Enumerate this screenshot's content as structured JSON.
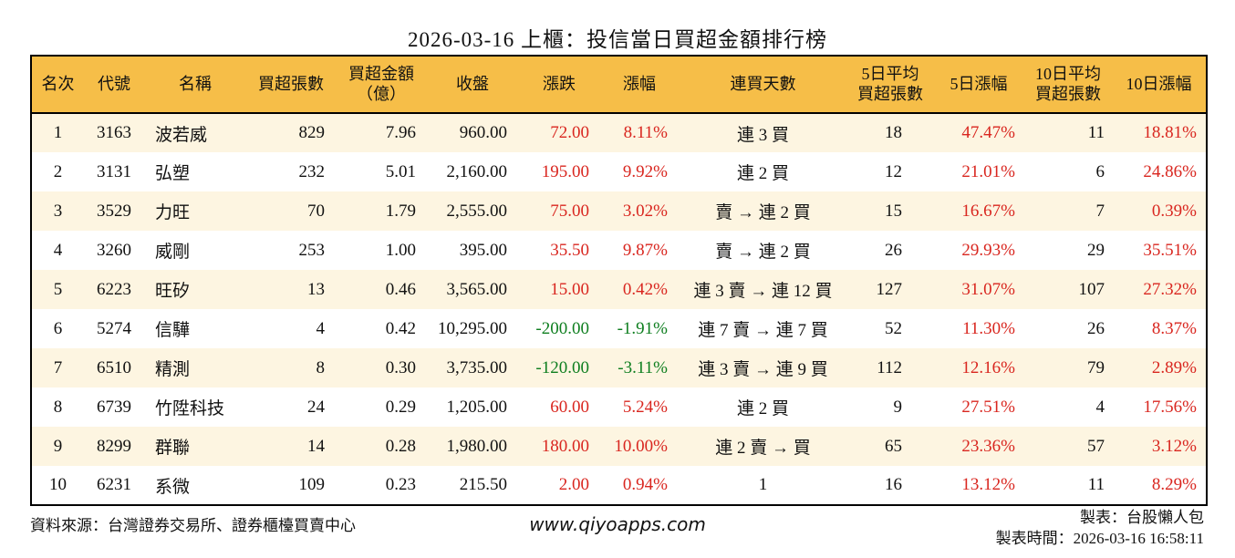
{
  "chart_data": {
    "type": "table",
    "title": "2026-03-16 上櫃：投信當日買超金額排行榜",
    "columns": [
      {
        "key": "rank",
        "label": "名次",
        "signed": false
      },
      {
        "key": "code",
        "label": "代號",
        "signed": false
      },
      {
        "key": "name",
        "label": "名稱",
        "signed": false
      },
      {
        "key": "lots",
        "label": "買超張數",
        "signed": false
      },
      {
        "key": "amount",
        "label": "買超金額\n（億）",
        "signed": false
      },
      {
        "key": "close",
        "label": "收盤",
        "signed": false
      },
      {
        "key": "change",
        "label": "漲跌",
        "signed": true
      },
      {
        "key": "change_pct",
        "label": "漲幅",
        "signed": true
      },
      {
        "key": "streak",
        "label": "連買天數",
        "signed": false
      },
      {
        "key": "avg5",
        "label": "5日平均\n買超張數",
        "signed": false
      },
      {
        "key": "pct5",
        "label": "5日漲幅",
        "signed": true
      },
      {
        "key": "avg10",
        "label": "10日平均\n買超張數",
        "signed": false
      },
      {
        "key": "pct10",
        "label": "10日漲幅",
        "signed": true
      }
    ],
    "rows": [
      {
        "rank": "1",
        "code": "3163",
        "name": "波若威",
        "lots": "829",
        "amount": "7.96",
        "close": "960.00",
        "change": "72.00",
        "change_pct": "8.11%",
        "streak": "連 3 買",
        "avg5": "18",
        "pct5": "47.47%",
        "avg10": "11",
        "pct10": "18.81%"
      },
      {
        "rank": "2",
        "code": "3131",
        "name": "弘塑",
        "lots": "232",
        "amount": "5.01",
        "close": "2,160.00",
        "change": "195.00",
        "change_pct": "9.92%",
        "streak": "連 2 買",
        "avg5": "12",
        "pct5": "21.01%",
        "avg10": "6",
        "pct10": "24.86%"
      },
      {
        "rank": "3",
        "code": "3529",
        "name": "力旺",
        "lots": "70",
        "amount": "1.79",
        "close": "2,555.00",
        "change": "75.00",
        "change_pct": "3.02%",
        "streak": "賣 → 連 2 買",
        "avg5": "15",
        "pct5": "16.67%",
        "avg10": "7",
        "pct10": "0.39%"
      },
      {
        "rank": "4",
        "code": "3260",
        "name": "威剛",
        "lots": "253",
        "amount": "1.00",
        "close": "395.00",
        "change": "35.50",
        "change_pct": "9.87%",
        "streak": "賣 → 連 2 買",
        "avg5": "26",
        "pct5": "29.93%",
        "avg10": "29",
        "pct10": "35.51%"
      },
      {
        "rank": "5",
        "code": "6223",
        "name": "旺矽",
        "lots": "13",
        "amount": "0.46",
        "close": "3,565.00",
        "change": "15.00",
        "change_pct": "0.42%",
        "streak": "連 3 賣 → 連 12 買",
        "avg5": "127",
        "pct5": "31.07%",
        "avg10": "107",
        "pct10": "27.32%"
      },
      {
        "rank": "6",
        "code": "5274",
        "name": "信驊",
        "lots": "4",
        "amount": "0.42",
        "close": "10,295.00",
        "change": "-200.00",
        "change_pct": "-1.91%",
        "streak": "連 7 賣 → 連 7 買",
        "avg5": "52",
        "pct5": "11.30%",
        "avg10": "26",
        "pct10": "8.37%"
      },
      {
        "rank": "7",
        "code": "6510",
        "name": "精測",
        "lots": "8",
        "amount": "0.30",
        "close": "3,735.00",
        "change": "-120.00",
        "change_pct": "-3.11%",
        "streak": "連 3 賣 → 連 9 買",
        "avg5": "112",
        "pct5": "12.16%",
        "avg10": "79",
        "pct10": "2.89%"
      },
      {
        "rank": "8",
        "code": "6739",
        "name": "竹陞科技",
        "lots": "24",
        "amount": "0.29",
        "close": "1,205.00",
        "change": "60.00",
        "change_pct": "5.24%",
        "streak": "連 2 買",
        "avg5": "9",
        "pct5": "27.51%",
        "avg10": "4",
        "pct10": "17.56%"
      },
      {
        "rank": "9",
        "code": "8299",
        "name": "群聯",
        "lots": "14",
        "amount": "0.28",
        "close": "1,980.00",
        "change": "180.00",
        "change_pct": "10.00%",
        "streak": "連 2 賣 → 買",
        "avg5": "65",
        "pct5": "23.36%",
        "avg10": "57",
        "pct10": "3.12%"
      },
      {
        "rank": "10",
        "code": "6231",
        "name": "系微",
        "lots": "109",
        "amount": "0.23",
        "close": "215.50",
        "change": "2.00",
        "change_pct": "0.94%",
        "streak": "1",
        "avg5": "16",
        "pct5": "13.12%",
        "avg10": "11",
        "pct10": "8.29%"
      }
    ]
  },
  "footer": {
    "source": "資料來源：台灣證券交易所、證券櫃檯買賣中心",
    "website": "www.qiyoapps.com",
    "author": "製表：台股懶人包",
    "generated": "製表時間：2026-03-16 16:58:11"
  },
  "colors": {
    "header_bg": "#f6be48",
    "row_alt_bg": "#fdf5e1",
    "up": "#d9261f",
    "down": "#0e7e1f"
  }
}
